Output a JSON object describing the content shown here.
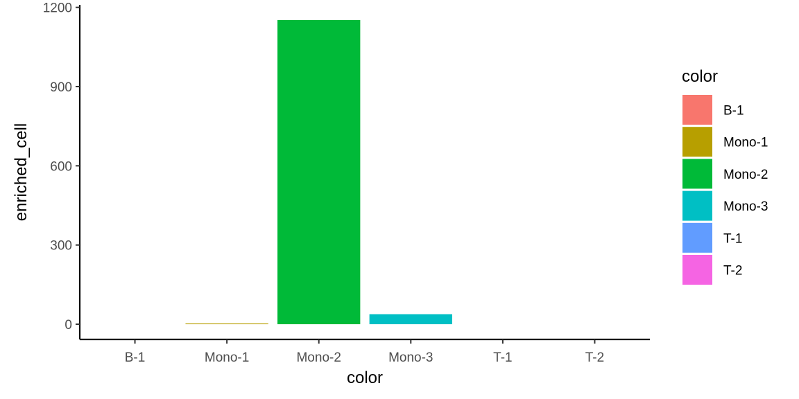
{
  "chart_data": {
    "type": "bar",
    "categories": [
      "B-1",
      "Mono-1",
      "Mono-2",
      "Mono-3",
      "T-1",
      "T-2"
    ],
    "values": [
      0,
      3,
      1152,
      38,
      0,
      0
    ],
    "colors": [
      "#F8766D",
      "#B79F00",
      "#00BA38",
      "#00BFC4",
      "#619CFF",
      "#F564E3"
    ],
    "xlabel": "color",
    "ylabel": "enriched_cell",
    "ylim": [
      -57.6,
      1209.6
    ],
    "yticks": [
      0,
      300,
      600,
      900,
      1200
    ],
    "ytick_labels": [
      "0",
      "300",
      "600",
      "900",
      "1200"
    ],
    "legend": {
      "title": "color",
      "position": "right",
      "entries": [
        "B-1",
        "Mono-1",
        "Mono-2",
        "Mono-3",
        "T-1",
        "T-2"
      ]
    },
    "grid": false
  }
}
